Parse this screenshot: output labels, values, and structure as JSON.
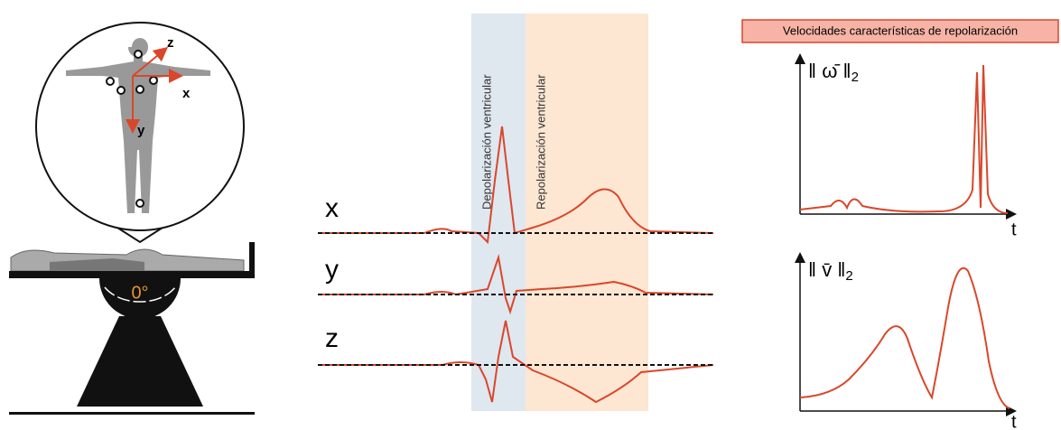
{
  "body_figure": {
    "axes": [
      "z",
      "x",
      "y"
    ],
    "tilt_angle": "0°"
  },
  "ecg": {
    "leads": [
      "x",
      "y",
      "z"
    ],
    "bands": [
      "Depolarización ventricular",
      "Repolarización ventricular"
    ]
  },
  "velocities": {
    "title": "Velocidades características de repolarización",
    "plots": [
      {
        "label": "‖ ω̄ ‖",
        "subscript": "2",
        "x_label": "t"
      },
      {
        "label": "‖ v̄ ‖",
        "subscript": "2",
        "x_label": "t"
      }
    ]
  }
}
